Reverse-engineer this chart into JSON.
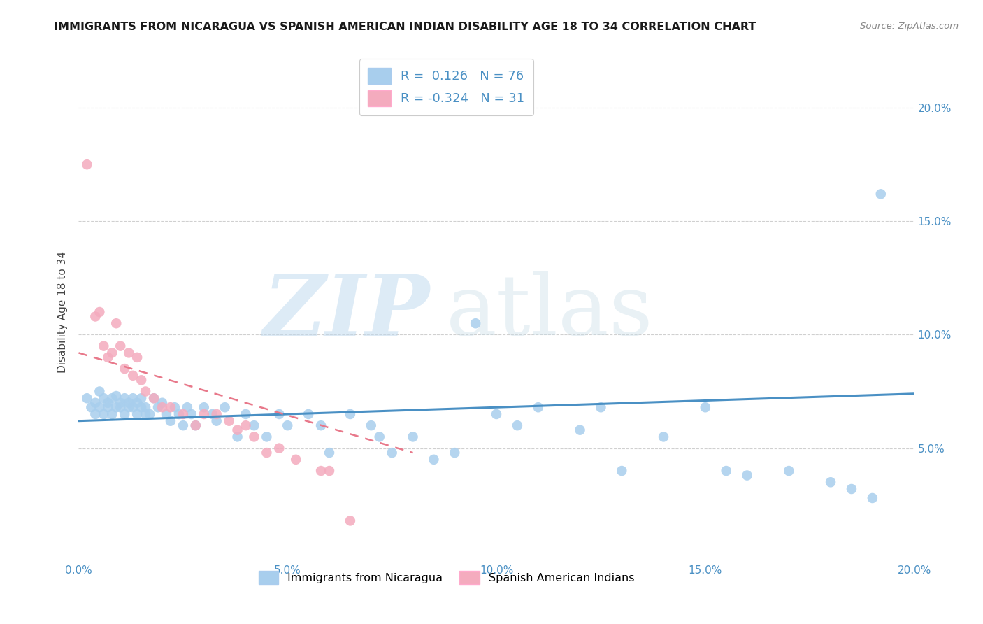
{
  "title": "IMMIGRANTS FROM NICARAGUA VS SPANISH AMERICAN INDIAN DISABILITY AGE 18 TO 34 CORRELATION CHART",
  "source": "Source: ZipAtlas.com",
  "ylabel": "Disability Age 18 to 34",
  "xlim": [
    0.0,
    0.2
  ],
  "ylim": [
    0.0,
    0.22
  ],
  "xtick_labels": [
    "0.0%",
    "",
    "5.0%",
    "",
    "10.0%",
    "",
    "15.0%",
    "",
    "20.0%"
  ],
  "xtick_vals": [
    0.0,
    0.025,
    0.05,
    0.075,
    0.1,
    0.125,
    0.15,
    0.175,
    0.2
  ],
  "ytick_labels": [
    "5.0%",
    "10.0%",
    "15.0%",
    "20.0%"
  ],
  "ytick_vals": [
    0.05,
    0.1,
    0.15,
    0.2
  ],
  "legend1_label": "Immigrants from Nicaragua",
  "legend2_label": "Spanish American Indians",
  "blue_color": "#A8CEED",
  "pink_color": "#F4ABBE",
  "blue_line_color": "#4A90C4",
  "pink_line_color": "#E8788A",
  "watermark_zip": "ZIP",
  "watermark_atlas": "atlas",
  "r_blue": 0.126,
  "n_blue": 76,
  "r_pink": -0.324,
  "n_pink": 31,
  "blue_scatter_x": [
    0.002,
    0.003,
    0.004,
    0.004,
    0.005,
    0.005,
    0.006,
    0.006,
    0.007,
    0.007,
    0.008,
    0.008,
    0.009,
    0.009,
    0.01,
    0.01,
    0.011,
    0.011,
    0.012,
    0.012,
    0.013,
    0.013,
    0.014,
    0.014,
    0.015,
    0.015,
    0.016,
    0.016,
    0.017,
    0.018,
    0.019,
    0.02,
    0.021,
    0.022,
    0.023,
    0.024,
    0.025,
    0.026,
    0.027,
    0.028,
    0.03,
    0.032,
    0.033,
    0.035,
    0.038,
    0.04,
    0.042,
    0.045,
    0.048,
    0.05,
    0.055,
    0.058,
    0.06,
    0.065,
    0.07,
    0.072,
    0.075,
    0.08,
    0.085,
    0.09,
    0.095,
    0.1,
    0.105,
    0.11,
    0.12,
    0.125,
    0.13,
    0.14,
    0.15,
    0.155,
    0.16,
    0.17,
    0.18,
    0.185,
    0.19,
    0.192
  ],
  "blue_scatter_y": [
    0.072,
    0.068,
    0.07,
    0.065,
    0.075,
    0.068,
    0.072,
    0.065,
    0.07,
    0.068,
    0.072,
    0.065,
    0.068,
    0.073,
    0.07,
    0.068,
    0.072,
    0.065,
    0.07,
    0.068,
    0.068,
    0.072,
    0.065,
    0.07,
    0.068,
    0.072,
    0.065,
    0.068,
    0.065,
    0.072,
    0.068,
    0.07,
    0.065,
    0.062,
    0.068,
    0.065,
    0.06,
    0.068,
    0.065,
    0.06,
    0.068,
    0.065,
    0.062,
    0.068,
    0.055,
    0.065,
    0.06,
    0.055,
    0.065,
    0.06,
    0.065,
    0.06,
    0.048,
    0.065,
    0.06,
    0.055,
    0.048,
    0.055,
    0.045,
    0.048,
    0.105,
    0.065,
    0.06,
    0.068,
    0.058,
    0.068,
    0.04,
    0.055,
    0.068,
    0.04,
    0.038,
    0.04,
    0.035,
    0.032,
    0.028,
    0.162
  ],
  "pink_scatter_x": [
    0.002,
    0.004,
    0.005,
    0.006,
    0.007,
    0.008,
    0.009,
    0.01,
    0.011,
    0.012,
    0.013,
    0.014,
    0.015,
    0.016,
    0.018,
    0.02,
    0.022,
    0.025,
    0.028,
    0.03,
    0.033,
    0.036,
    0.038,
    0.04,
    0.042,
    0.045,
    0.048,
    0.052,
    0.058,
    0.06,
    0.065
  ],
  "pink_scatter_y": [
    0.175,
    0.108,
    0.11,
    0.095,
    0.09,
    0.092,
    0.105,
    0.095,
    0.085,
    0.092,
    0.082,
    0.09,
    0.08,
    0.075,
    0.072,
    0.068,
    0.068,
    0.065,
    0.06,
    0.065,
    0.065,
    0.062,
    0.058,
    0.06,
    0.055,
    0.048,
    0.05,
    0.045,
    0.04,
    0.04,
    0.018
  ],
  "blue_trend_x": [
    0.0,
    0.2
  ],
  "blue_trend_y": [
    0.062,
    0.074
  ],
  "pink_trend_x": [
    0.0,
    0.08
  ],
  "pink_trend_y": [
    0.092,
    0.048
  ]
}
